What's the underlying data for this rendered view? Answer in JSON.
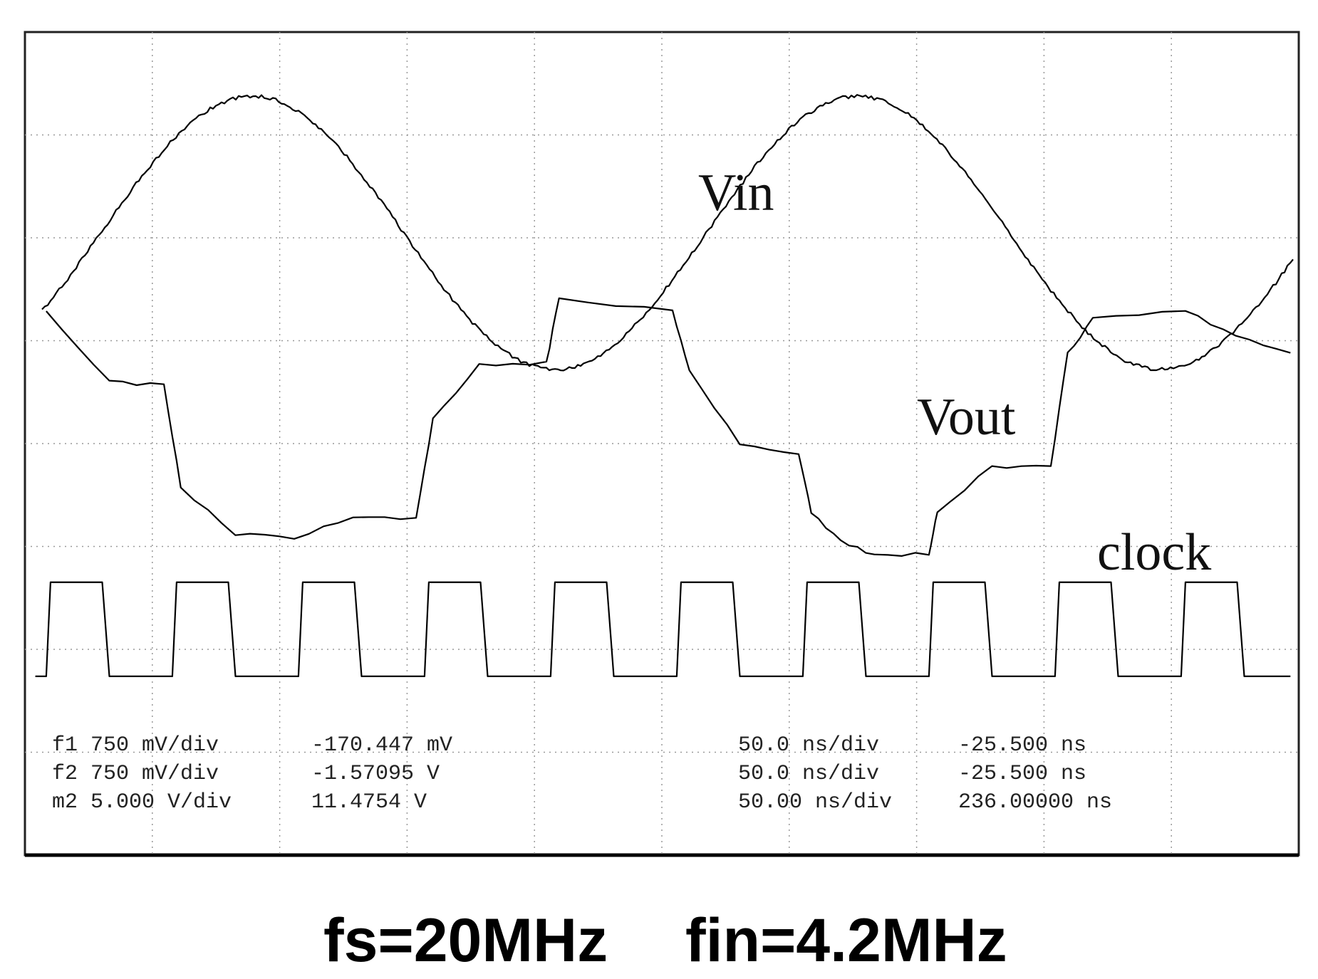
{
  "labels": {
    "vin": "Vin",
    "vout": "Vout",
    "clock": "clock"
  },
  "readout": {
    "rows": [
      [
        "f1 750 mV/div",
        "-170.447 mV",
        "50.0 ns/div",
        "-25.500 ns"
      ],
      [
        "f2 750 mV/div",
        "-1.57095 V",
        "50.0 ns/div",
        "-25.500 ns"
      ],
      [
        "m2 5.000 V/div",
        "11.4754 V",
        "50.00 ns/div",
        "236.00000 ns"
      ]
    ]
  },
  "caption": [
    "fs=20MHz",
    "fin=4.2MHz"
  ]
}
